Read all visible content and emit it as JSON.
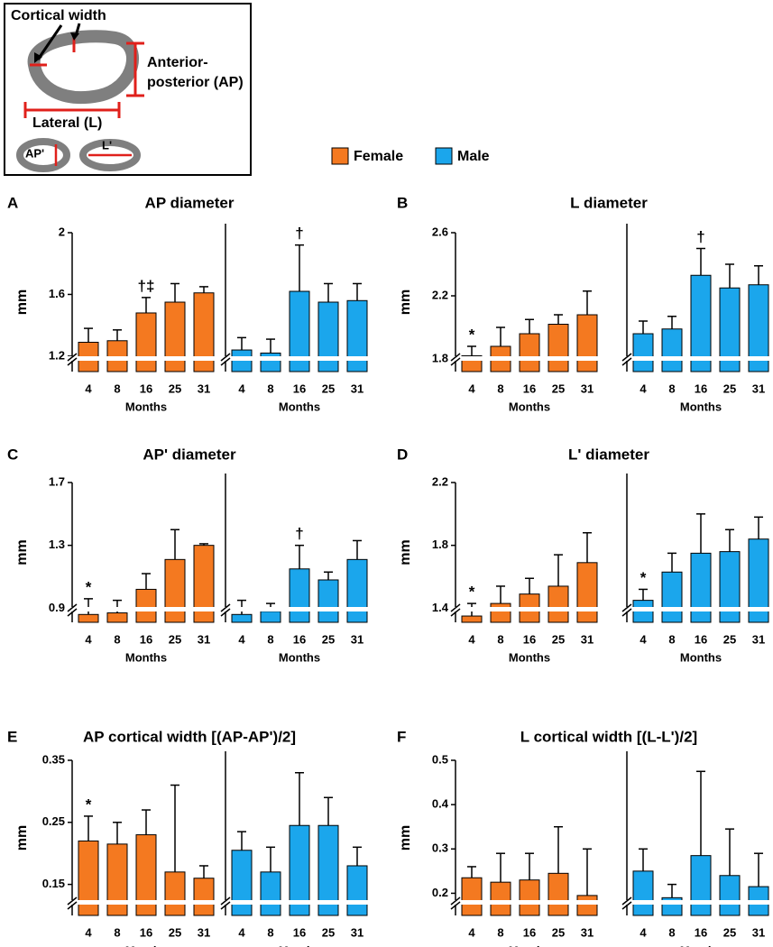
{
  "inset": {
    "cortical_width": "Cortical width",
    "anterior_posterior": [
      "Anterior-",
      "posterior (AP)"
    ],
    "lateral": "Lateral (L)",
    "ap_prime": "AP'",
    "l_prime": "L'"
  },
  "chart_data": [
    {
      "type": "bar",
      "panel": "A",
      "title": "AP diameter",
      "ylabel": "mm",
      "xlabel": "Months",
      "categories": [
        "4",
        "8",
        "16",
        "25",
        "31"
      ],
      "ylim": [
        1.1,
        2.0
      ],
      "yticks": [
        1.2,
        1.6,
        2
      ],
      "series": [
        {
          "name": "Female",
          "color": "#f47920",
          "values": [
            1.29,
            1.3,
            1.48,
            1.55,
            1.61
          ],
          "errors": [
            0.09,
            0.07,
            0.1,
            0.12,
            0.04
          ],
          "annotations": [
            null,
            null,
            "†‡",
            null,
            null
          ]
        },
        {
          "name": "Male",
          "color": "#1ba6ec",
          "values": [
            1.24,
            1.22,
            1.62,
            1.55,
            1.56
          ],
          "errors": [
            0.08,
            0.09,
            0.3,
            0.12,
            0.11
          ],
          "annotations": [
            null,
            null,
            "†",
            null,
            null
          ]
        }
      ]
    },
    {
      "type": "bar",
      "panel": "B",
      "title": "L diameter",
      "ylabel": "mm",
      "xlabel": "Months",
      "categories": [
        "4",
        "8",
        "16",
        "25",
        "31"
      ],
      "ylim": [
        1.72,
        2.6
      ],
      "yticks": [
        1.8,
        2.2,
        2.6
      ],
      "series": [
        {
          "name": "Female",
          "color": "#f47920",
          "values": [
            1.82,
            1.88,
            1.96,
            2.02,
            2.08
          ],
          "errors": [
            0.06,
            0.12,
            0.09,
            0.06,
            0.15
          ],
          "annotations": [
            "*",
            null,
            null,
            null,
            null
          ]
        },
        {
          "name": "Male",
          "color": "#1ba6ec",
          "values": [
            1.96,
            1.99,
            2.33,
            2.25,
            2.27
          ],
          "errors": [
            0.08,
            0.08,
            0.17,
            0.15,
            0.12
          ],
          "annotations": [
            null,
            null,
            "†",
            null,
            null
          ]
        }
      ]
    },
    {
      "type": "bar",
      "panel": "C",
      "title": "AP' diameter",
      "ylabel": "mm",
      "xlabel": "Months",
      "categories": [
        "4",
        "8",
        "16",
        "25",
        "31"
      ],
      "ylim": [
        0.81,
        1.7
      ],
      "yticks": [
        0.9,
        1.3,
        1.7
      ],
      "series": [
        {
          "name": "Female",
          "color": "#f47920",
          "values": [
            0.86,
            0.87,
            1.02,
            1.21,
            1.3
          ],
          "errors": [
            0.1,
            0.08,
            0.1,
            0.19,
            0.01
          ],
          "annotations": [
            "*",
            null,
            null,
            null,
            null
          ]
        },
        {
          "name": "Male",
          "color": "#1ba6ec",
          "values": [
            0.86,
            0.88,
            1.15,
            1.08,
            1.21
          ],
          "errors": [
            0.09,
            0.05,
            0.15,
            0.05,
            0.12
          ],
          "annotations": [
            null,
            null,
            "†",
            null,
            null
          ]
        }
      ]
    },
    {
      "type": "bar",
      "panel": "D",
      "title": "L' diameter",
      "ylabel": "mm",
      "xlabel": "Months",
      "categories": [
        "4",
        "8",
        "16",
        "25",
        "31"
      ],
      "ylim": [
        1.31,
        2.2
      ],
      "yticks": [
        1.4,
        1.8,
        2.2
      ],
      "series": [
        {
          "name": "Female",
          "color": "#f47920",
          "values": [
            1.35,
            1.43,
            1.49,
            1.54,
            1.69
          ],
          "errors": [
            0.08,
            0.11,
            0.1,
            0.2,
            0.19
          ],
          "annotations": [
            "*",
            null,
            null,
            null,
            null
          ]
        },
        {
          "name": "Male",
          "color": "#1ba6ec",
          "values": [
            1.45,
            1.63,
            1.75,
            1.76,
            1.84
          ],
          "errors": [
            0.07,
            0.12,
            0.25,
            0.14,
            0.14
          ],
          "annotations": [
            "*",
            null,
            null,
            null,
            null
          ]
        }
      ]
    },
    {
      "type": "bar",
      "panel": "E",
      "title": "AP cortical width [(AP-AP')/2]",
      "ylabel": "mm",
      "xlabel": "Months",
      "categories": [
        "4",
        "8",
        "16",
        "25",
        "31"
      ],
      "ylim": [
        0.1,
        0.35
      ],
      "yticks": [
        0.15,
        0.25,
        0.35
      ],
      "series": [
        {
          "name": "Female",
          "color": "#f47920",
          "values": [
            0.22,
            0.215,
            0.23,
            0.17,
            0.16
          ],
          "errors": [
            0.04,
            0.035,
            0.04,
            0.14,
            0.02
          ],
          "annotations": [
            "*",
            null,
            null,
            null,
            null
          ]
        },
        {
          "name": "Male",
          "color": "#1ba6ec",
          "values": [
            0.205,
            0.17,
            0.245,
            0.245,
            0.18
          ],
          "errors": [
            0.03,
            0.04,
            0.085,
            0.045,
            0.03
          ],
          "annotations": [
            null,
            null,
            null,
            null,
            null
          ]
        }
      ]
    },
    {
      "type": "bar",
      "panel": "F",
      "title": "L cortical width [(L-L')/2]",
      "ylabel": "mm",
      "xlabel": "Months",
      "categories": [
        "4",
        "8",
        "16",
        "25",
        "31"
      ],
      "ylim": [
        0.15,
        0.5
      ],
      "yticks": [
        0.2,
        0.3,
        0.4,
        0.5
      ],
      "series": [
        {
          "name": "Female",
          "color": "#f47920",
          "values": [
            0.235,
            0.225,
            0.23,
            0.245,
            0.195
          ],
          "errors": [
            0.025,
            0.065,
            0.06,
            0.105,
            0.105
          ],
          "annotations": [
            null,
            null,
            null,
            null,
            null
          ]
        },
        {
          "name": "Male",
          "color": "#1ba6ec",
          "values": [
            0.25,
            0.19,
            0.285,
            0.24,
            0.215
          ],
          "errors": [
            0.05,
            0.03,
            0.19,
            0.105,
            0.075
          ],
          "annotations": [
            null,
            null,
            null,
            null,
            null
          ]
        }
      ]
    }
  ]
}
